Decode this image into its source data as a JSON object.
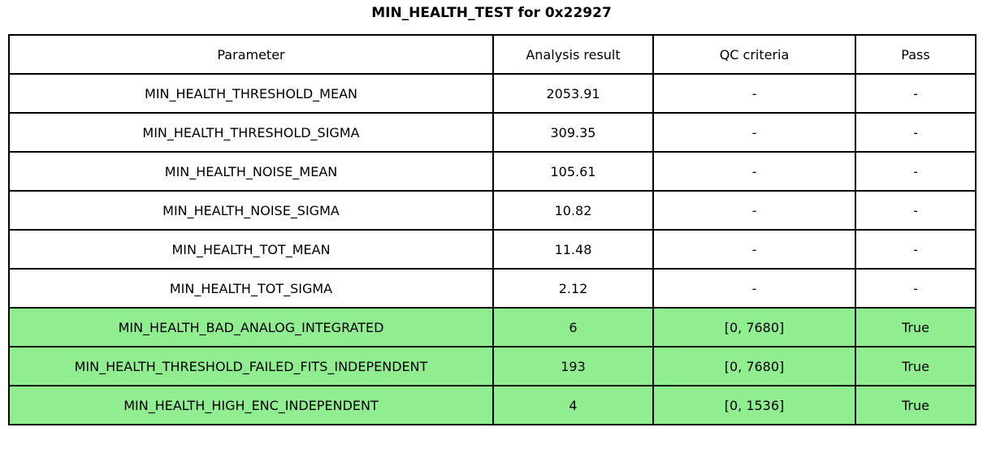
{
  "title": "MIN_HEALTH_TEST for 0x22927",
  "colors": {
    "pass_green": "#90EE90",
    "border": "#000000",
    "background": "#ffffff"
  },
  "chart_data": {
    "type": "table",
    "title": "MIN_HEALTH_TEST for 0x22927",
    "columns": [
      "Parameter",
      "Analysis result",
      "QC criteria",
      "Pass"
    ],
    "rows": [
      {
        "parameter": "MIN_HEALTH_THRESHOLD_MEAN",
        "result": "2053.91",
        "qc": "-",
        "pass": "-",
        "highlight": false
      },
      {
        "parameter": "MIN_HEALTH_THRESHOLD_SIGMA",
        "result": "309.35",
        "qc": "-",
        "pass": "-",
        "highlight": false
      },
      {
        "parameter": "MIN_HEALTH_NOISE_MEAN",
        "result": "105.61",
        "qc": "-",
        "pass": "-",
        "highlight": false
      },
      {
        "parameter": "MIN_HEALTH_NOISE_SIGMA",
        "result": "10.82",
        "qc": "-",
        "pass": "-",
        "highlight": false
      },
      {
        "parameter": "MIN_HEALTH_TOT_MEAN",
        "result": "11.48",
        "qc": "-",
        "pass": "-",
        "highlight": false
      },
      {
        "parameter": "MIN_HEALTH_TOT_SIGMA",
        "result": "2.12",
        "qc": "-",
        "pass": "-",
        "highlight": false
      },
      {
        "parameter": "MIN_HEALTH_BAD_ANALOG_INTEGRATED",
        "result": "6",
        "qc": "[0, 7680]",
        "pass": "True",
        "highlight": true
      },
      {
        "parameter": "MIN_HEALTH_THRESHOLD_FAILED_FITS_INDEPENDENT",
        "result": "193",
        "qc": "[0, 7680]",
        "pass": "True",
        "highlight": true
      },
      {
        "parameter": "MIN_HEALTH_HIGH_ENC_INDEPENDENT",
        "result": "4",
        "qc": "[0, 1536]",
        "pass": "True",
        "highlight": true
      }
    ]
  }
}
